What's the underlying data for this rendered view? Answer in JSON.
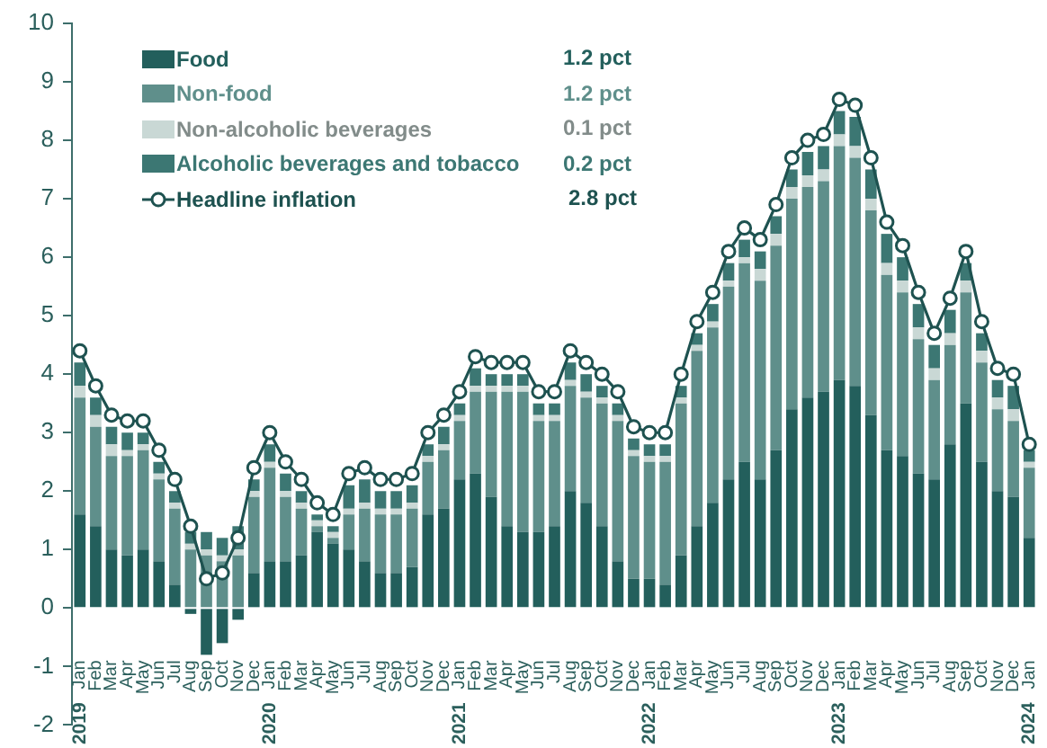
{
  "chart_data": {
    "type": "bar",
    "stacked": true,
    "grid": false,
    "legend": "top left",
    "marker": "circle",
    "categories": [
      "Jan",
      "Feb",
      "Mar",
      "Apr",
      "May",
      "Jun",
      "Jul",
      "Aug",
      "Sep",
      "Oct",
      "Nov",
      "Dec",
      "Jan",
      "Feb",
      "Mar",
      "Apr",
      "May",
      "Jun",
      "Jul",
      "Aug",
      "Sep",
      "Oct",
      "Nov",
      "Dec",
      "Jan",
      "Feb",
      "Mar",
      "Apr",
      "May",
      "Jun",
      "Jul",
      "Aug",
      "Sep",
      "Oct",
      "Nov",
      "Dec",
      "Jan",
      "Feb",
      "Mar",
      "Apr",
      "May",
      "Jun",
      "Jul",
      "Aug",
      "Sep",
      "Oct",
      "Nov",
      "Dec",
      "Jan",
      "Feb",
      "Mar",
      "Apr",
      "May",
      "Jun",
      "Jul",
      "Aug",
      "Sep",
      "Oct",
      "Nov",
      "Dec",
      "Jan"
    ],
    "ylim": [
      -2,
      10
    ],
    "yticks": [
      -2,
      -1,
      0,
      1,
      2,
      3,
      4,
      5,
      6,
      7,
      8,
      9,
      10
    ],
    "series": [
      {
        "name": "Food",
        "color": "#235f5c",
        "values": [
          1.6,
          1.4,
          1.0,
          0.9,
          1.0,
          0.8,
          0.4,
          -0.1,
          -0.8,
          -0.6,
          -0.2,
          0.6,
          0.8,
          0.8,
          0.9,
          1.3,
          1.1,
          1.0,
          0.8,
          0.6,
          0.6,
          0.7,
          1.6,
          1.7,
          2.2,
          2.3,
          1.9,
          1.4,
          1.3,
          1.3,
          1.4,
          2.0,
          1.8,
          1.4,
          0.8,
          0.5,
          0.5,
          0.4,
          0.9,
          1.4,
          1.8,
          2.2,
          2.5,
          2.2,
          2.7,
          3.4,
          3.6,
          3.7,
          3.9,
          3.8,
          3.3,
          2.7,
          2.6,
          2.3,
          2.2,
          2.8,
          3.5,
          2.5,
          2.0,
          1.9,
          1.2
        ]
      },
      {
        "name": "Non-food",
        "color": "#5f8f8b",
        "values": [
          2.0,
          1.7,
          1.6,
          1.7,
          1.7,
          1.4,
          1.3,
          1.0,
          0.9,
          0.8,
          0.9,
          1.3,
          1.6,
          1.1,
          0.8,
          0.1,
          0.1,
          0.6,
          0.9,
          1.0,
          1.0,
          1.0,
          0.9,
          1.0,
          1.0,
          1.4,
          1.8,
          2.3,
          2.4,
          1.9,
          1.8,
          1.8,
          1.8,
          2.1,
          2.4,
          2.1,
          2.0,
          2.1,
          2.6,
          3.0,
          3.0,
          3.3,
          3.4,
          3.4,
          3.5,
          3.6,
          3.6,
          3.6,
          4.0,
          3.9,
          3.5,
          3.0,
          2.8,
          2.3,
          1.7,
          1.7,
          1.9,
          1.7,
          1.4,
          1.3,
          1.2
        ]
      },
      {
        "name": "Non-alcoholic beverages",
        "color": "#c9d8d5",
        "values": [
          0.2,
          0.2,
          0.2,
          0.1,
          0.1,
          0.1,
          0.1,
          0.1,
          0.1,
          0.1,
          0.1,
          0.1,
          0.1,
          0.1,
          0.1,
          0.1,
          0.1,
          0.1,
          0.1,
          0.1,
          0.1,
          0.1,
          0.1,
          0.1,
          0.1,
          0.1,
          0.1,
          0.1,
          0.1,
          0.1,
          0.1,
          0.1,
          0.1,
          0.1,
          0.1,
          0.1,
          0.1,
          0.1,
          0.1,
          0.1,
          0.1,
          0.1,
          0.1,
          0.2,
          0.2,
          0.2,
          0.2,
          0.2,
          0.2,
          0.2,
          0.2,
          0.2,
          0.2,
          0.2,
          0.2,
          0.2,
          0.2,
          0.2,
          0.2,
          0.2,
          0.1
        ]
      },
      {
        "name": "Alcoholic beverages and tobacco",
        "color": "#3c7773",
        "values": [
          0.4,
          0.3,
          0.3,
          0.3,
          0.2,
          0.2,
          0.2,
          0.2,
          0.3,
          0.3,
          0.4,
          0.2,
          0.3,
          0.3,
          0.2,
          0.1,
          0.1,
          0.4,
          0.4,
          0.3,
          0.3,
          0.3,
          0.2,
          0.3,
          0.2,
          0.3,
          0.2,
          0.2,
          0.2,
          0.2,
          0.2,
          0.3,
          0.3,
          0.2,
          0.2,
          0.2,
          0.2,
          0.2,
          0.2,
          0.2,
          0.3,
          0.3,
          0.3,
          0.3,
          0.3,
          0.3,
          0.4,
          0.4,
          0.4,
          0.5,
          0.5,
          0.5,
          0.4,
          0.4,
          0.4,
          0.4,
          0.3,
          0.3,
          0.3,
          0.4,
          0.2
        ]
      },
      {
        "name": "Headline inflation",
        "type": "line",
        "color": "#1e5250",
        "values": [
          4.4,
          3.8,
          3.3,
          3.2,
          3.2,
          2.7,
          2.2,
          1.4,
          0.5,
          0.6,
          1.2,
          2.4,
          3.0,
          2.5,
          2.2,
          1.8,
          1.6,
          2.3,
          2.4,
          2.2,
          2.2,
          2.3,
          3.0,
          3.3,
          3.7,
          4.3,
          4.2,
          4.2,
          4.2,
          3.7,
          3.7,
          4.4,
          4.2,
          4.0,
          3.7,
          3.1,
          3.0,
          3.0,
          4.0,
          4.9,
          5.4,
          6.1,
          6.5,
          6.3,
          6.9,
          7.7,
          8.0,
          8.1,
          8.7,
          8.6,
          7.7,
          6.6,
          6.2,
          5.4,
          4.7,
          5.3,
          6.1,
          4.9,
          4.1,
          4.0,
          2.8
        ]
      }
    ],
    "annotations": [
      "1.2 pct",
      "1.2 pct",
      "0.1 pct",
      "0.2 pct",
      "2.8 pct",
      "2019",
      "2020",
      "2021",
      "2022",
      "2023",
      "2024"
    ]
  }
}
